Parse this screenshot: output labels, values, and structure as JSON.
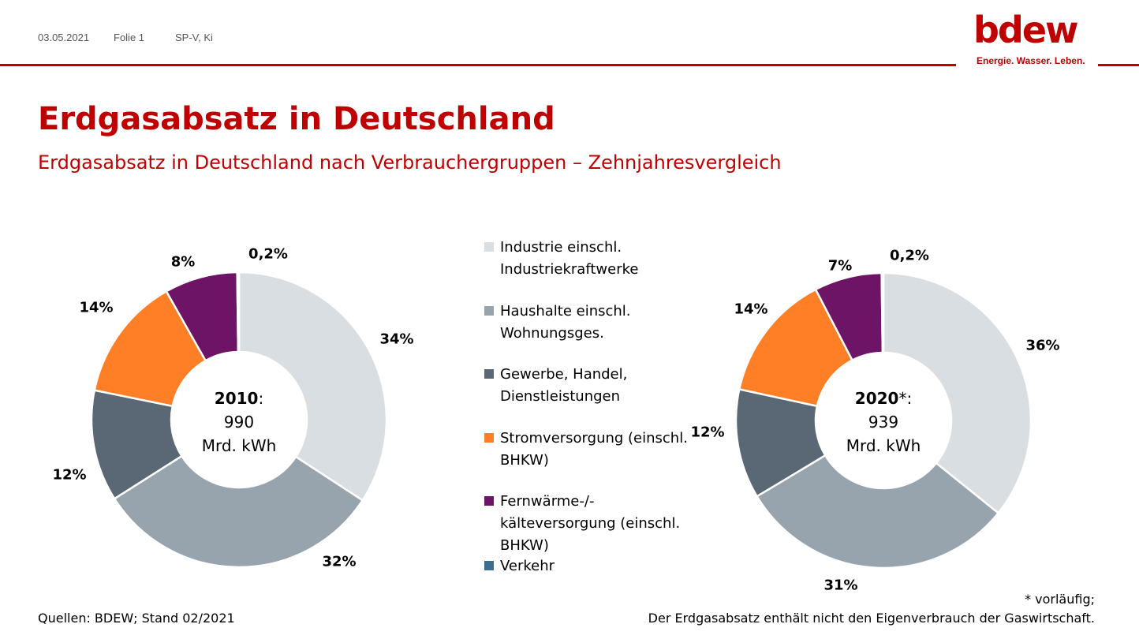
{
  "header": {
    "date": "03.05.2021",
    "slide": "Folie 1",
    "author": "SP-V, Ki"
  },
  "logo": {
    "word": "bdew",
    "tagline": "Energie. Wasser. Leben."
  },
  "title": "Erdgasabsatz in Deutschland",
  "subtitle": "Erdgasabsatz in Deutschland nach Verbrauchergruppen – Zehnjahresvergleich",
  "colors": {
    "accent": "#c00000",
    "industrie": "#d9dee3",
    "haushalte": "#97a3ad",
    "gewerbe": "#596874",
    "strom": "#ff7f27",
    "fernwaerme": "#6e1466",
    "verkehr": "#3c6e8f"
  },
  "chart_data": [
    {
      "type": "donut",
      "center_year": "2010",
      "center_suffix": ":",
      "center_value": "990",
      "center_unit": "Mrd. kWh",
      "categories": [
        "Industrie einschl. Industriekraftwerke",
        "Haushalte einschl. Wohnungsges.",
        "Gewerbe, Handel, Dienstleistungen",
        "Stromversorgung (einschl. BHKW)",
        "Fernwärme-/-kälteversorgung (einschl. BHKW)",
        "Verkehr"
      ],
      "values": [
        34.2,
        31.8,
        12.2,
        13.6,
        8.0,
        0.2
      ],
      "labels": [
        "34%",
        "32%",
        "12%",
        "14%",
        "8%",
        "0,2%"
      ]
    },
    {
      "type": "donut",
      "center_year": "2020",
      "center_suffix": "*:",
      "center_value": "939",
      "center_unit": "Mrd. kWh",
      "categories": [
        "Industrie einschl. Industriekraftwerke",
        "Haushalte einschl. Wohnungsges.",
        "Gewerbe, Handel, Dienstleistungen",
        "Stromversorgung (einschl. BHKW)",
        "Fernwärme-/-kälteversorgung (einschl. BHKW)",
        "Verkehr"
      ],
      "values": [
        35.8,
        30.6,
        12.0,
        14.0,
        7.4,
        0.2
      ],
      "labels": [
        "36%",
        "31%",
        "12%",
        "14%",
        "7%",
        "0,2%"
      ]
    }
  ],
  "legend": [
    {
      "text": "Industrie einschl. Industriekraftwerke",
      "color_key": "industrie"
    },
    {
      "text": "Haushalte einschl. Wohnungsges.",
      "color_key": "haushalte"
    },
    {
      "text": "Gewerbe, Handel, Dienstleistungen",
      "color_key": "gewerbe"
    },
    {
      "text": "Stromversorgung (einschl. BHKW)",
      "color_key": "strom"
    },
    {
      "text": "Fernwärme-/-kälteversorgung (einschl. BHKW)",
      "color_key": "fernwaerme"
    },
    {
      "text": "Verkehr",
      "color_key": "verkehr"
    }
  ],
  "footer": {
    "source": "Quellen: BDEW; Stand 02/2021",
    "note_provisional": "* vorläufig;",
    "note_consumption": "Der Erdgasabsatz enthält nicht den Eigenverbrauch der Gaswirtschaft."
  }
}
